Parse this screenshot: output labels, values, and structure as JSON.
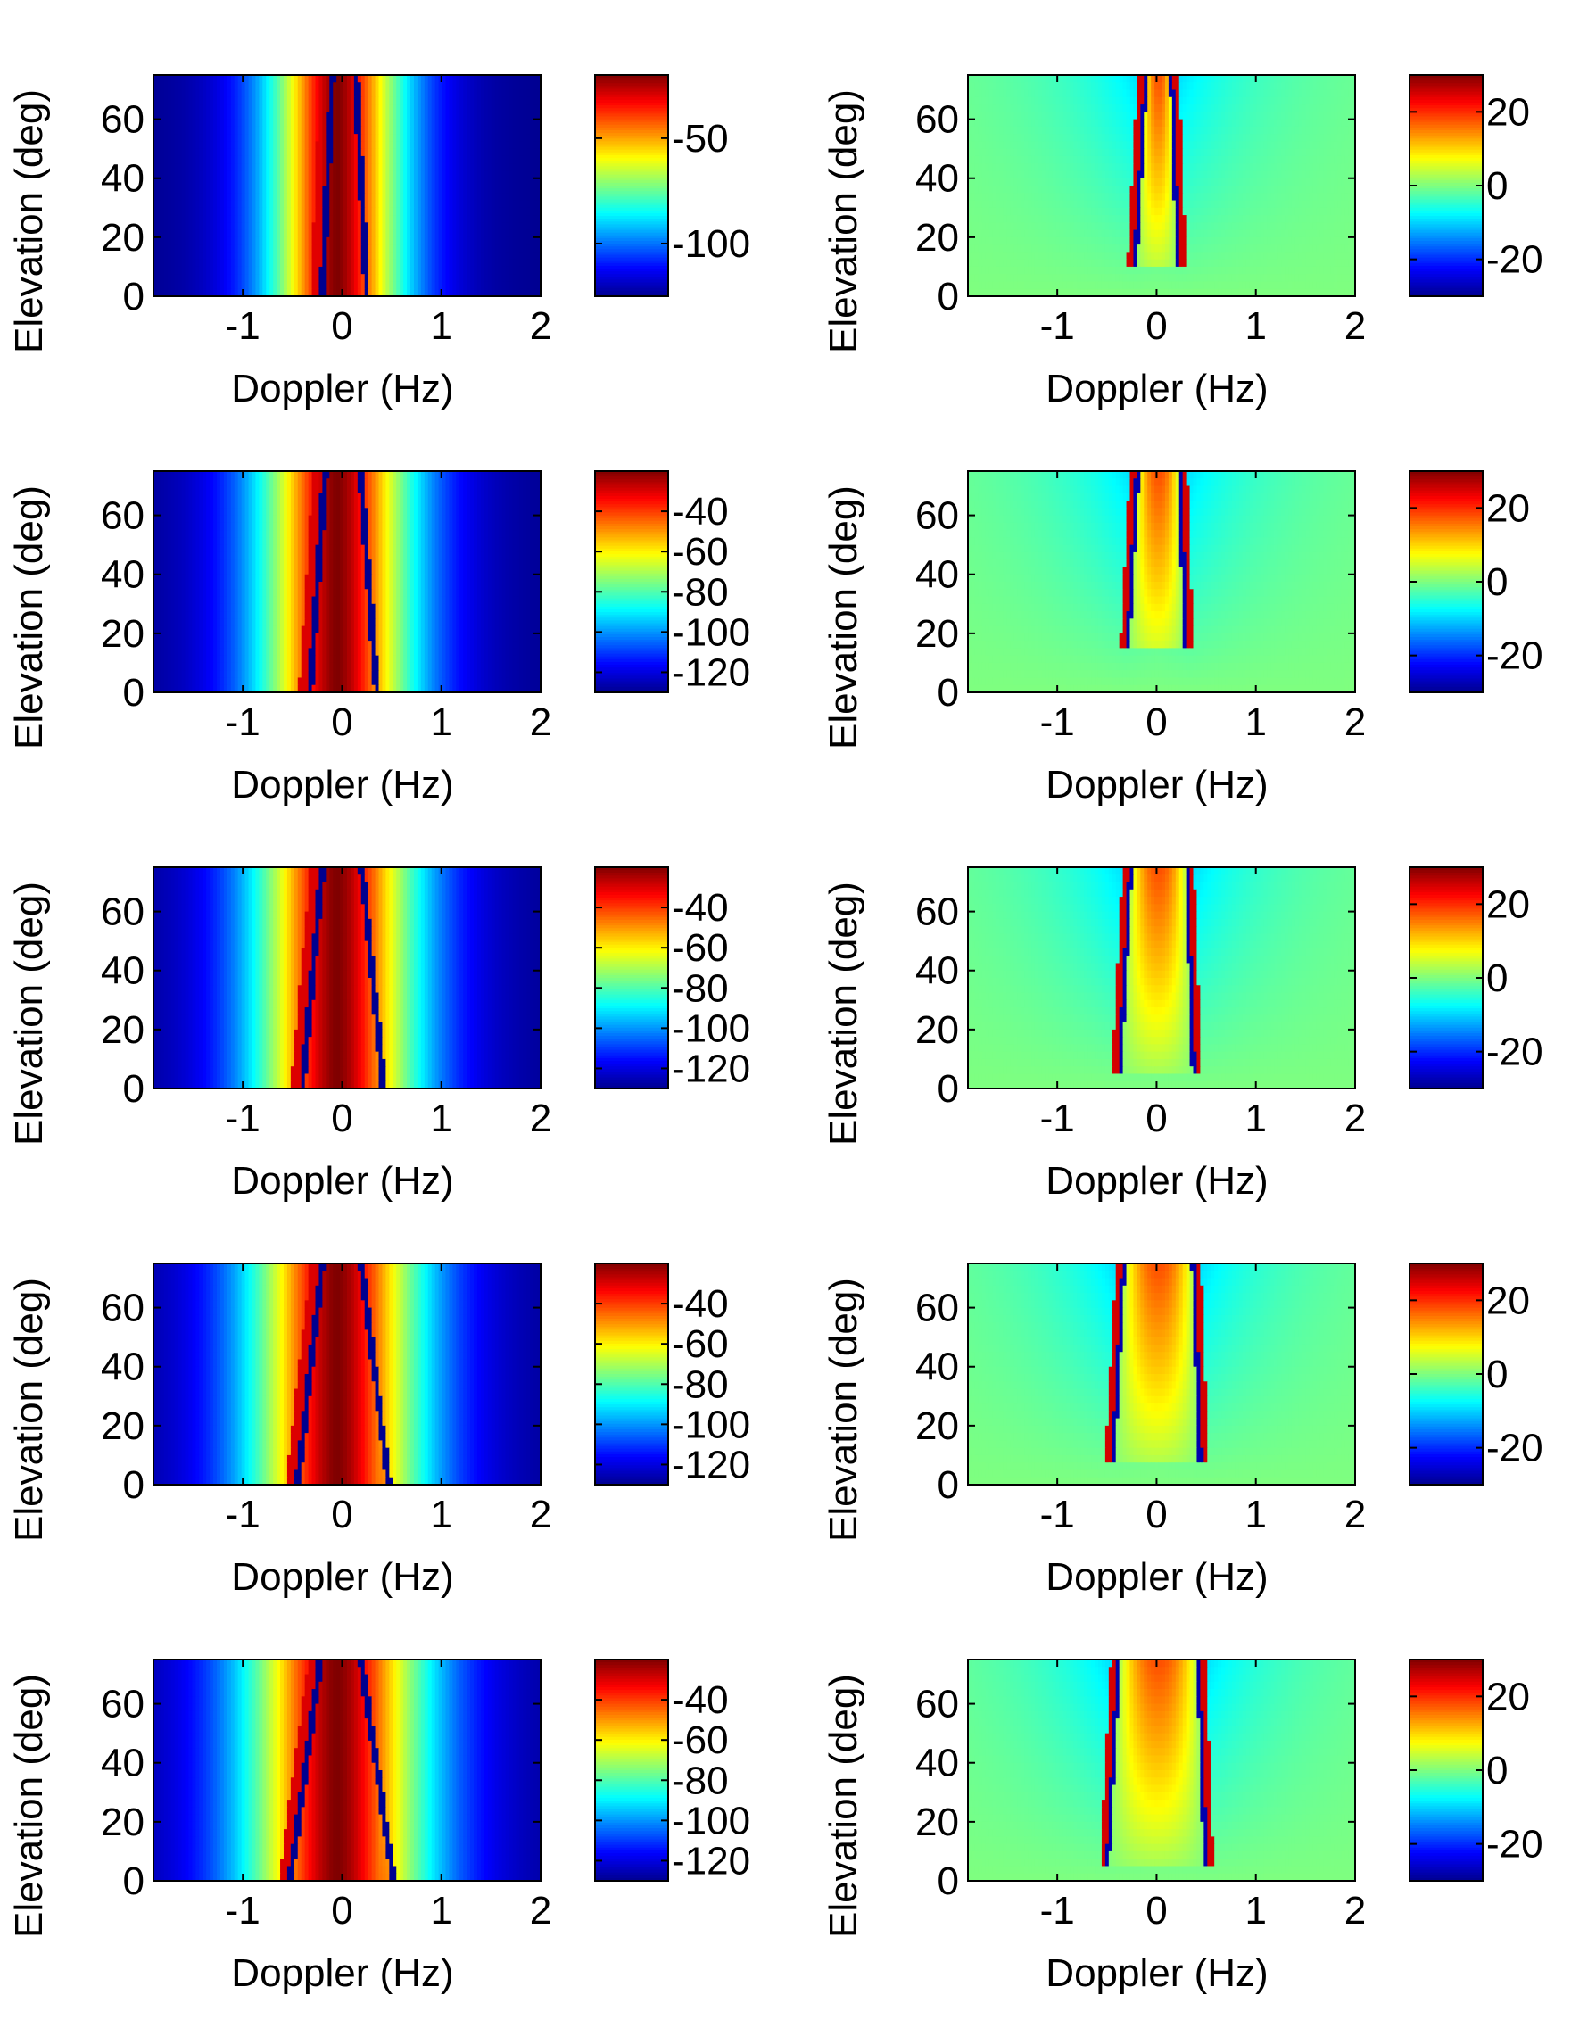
{
  "figure": {
    "rows": 5,
    "columns": 2,
    "colormap": [
      "#00008f",
      "#0000ff",
      "#007fff",
      "#00ffff",
      "#7fff7f",
      "#ffff00",
      "#ff7f00",
      "#ff0000",
      "#7f0000"
    ]
  },
  "chart_data": [
    {
      "type": "heatmap",
      "panel": "row1-left",
      "title": "",
      "xlabel": "Doppler (Hz)",
      "ylabel": "Elevation (deg)",
      "xlim": [
        -1.9,
        2
      ],
      "ylim": [
        0,
        75
      ],
      "xticks": [
        -1,
        0,
        1,
        2
      ],
      "xtick_labels": [
        "-1",
        "0",
        "1",
        "2"
      ],
      "yticks": [
        0,
        20,
        40,
        60
      ],
      "ytick_labels": [
        "0",
        "20",
        "40",
        "60"
      ],
      "colorbar": {
        "range": [
          -125,
          -20
        ],
        "ticks": [
          -50,
          -100
        ],
        "tick_labels": [
          "-50",
          "-100"
        ]
      },
      "features": {
        "kind": "spectrum",
        "ridge_doppler": 0.25,
        "ridge_width": 0.35,
        "notch_lines_at_elev0": [
          -0.2,
          0.25
        ],
        "notch_curvature": 0.1,
        "floor_db": -125,
        "peak_db": -20
      }
    },
    {
      "type": "heatmap",
      "panel": "row1-right",
      "title": "",
      "xlabel": "Doppler (Hz)",
      "ylabel": "Elevation (deg)",
      "xlim": [
        -1.9,
        2
      ],
      "ylim": [
        0,
        75
      ],
      "xticks": [
        -1,
        0,
        1,
        2
      ],
      "xtick_labels": [
        "-1",
        "0",
        "1",
        "2"
      ],
      "yticks": [
        0,
        20,
        40,
        60
      ],
      "ytick_labels": [
        "0",
        "20",
        "40",
        "60"
      ],
      "colorbar": {
        "range": [
          -30,
          30
        ],
        "ticks": [
          20,
          0,
          -20
        ],
        "tick_labels": [
          "20",
          "0",
          "-20"
        ]
      },
      "features": {
        "kind": "difference",
        "edge_doppler": 0.25,
        "start_elev": 10,
        "background": 0
      }
    },
    {
      "type": "heatmap",
      "panel": "row2-left",
      "title": "",
      "xlabel": "Doppler (Hz)",
      "ylabel": "Elevation (deg)",
      "xlim": [
        -1.9,
        2
      ],
      "ylim": [
        0,
        75
      ],
      "xticks": [
        -1,
        0,
        1,
        2
      ],
      "xtick_labels": [
        "-1",
        "0",
        "1",
        "2"
      ],
      "yticks": [
        0,
        20,
        40,
        60
      ],
      "ytick_labels": [
        "0",
        "20",
        "40",
        "60"
      ],
      "colorbar": {
        "range": [
          -130,
          -20
        ],
        "ticks": [
          -40,
          -60,
          -80,
          -100,
          -120
        ],
        "tick_labels": [
          "-40",
          "-60",
          "-80",
          "-100",
          "-120"
        ]
      },
      "features": {
        "kind": "spectrum",
        "ridge_doppler": 0.32,
        "ridge_width": 0.45,
        "notch_lines_at_elev0": [
          -0.32,
          0.35
        ],
        "notch_curvature": 0.15,
        "floor_db": -130,
        "peak_db": -20
      }
    },
    {
      "type": "heatmap",
      "panel": "row2-right",
      "title": "",
      "xlabel": "Doppler (Hz)",
      "ylabel": "Elevation (deg)",
      "xlim": [
        -1.9,
        2
      ],
      "ylim": [
        0,
        75
      ],
      "xticks": [
        -1,
        0,
        1,
        2
      ],
      "xtick_labels": [
        "-1",
        "0",
        "1",
        "2"
      ],
      "yticks": [
        0,
        20,
        40,
        60
      ],
      "ytick_labels": [
        "0",
        "20",
        "40",
        "60"
      ],
      "colorbar": {
        "range": [
          -30,
          30
        ],
        "ticks": [
          20,
          0,
          -20
        ],
        "tick_labels": [
          "20",
          "0",
          "-20"
        ]
      },
      "features": {
        "kind": "difference",
        "edge_doppler": 0.33,
        "start_elev": 15,
        "background": 0
      }
    },
    {
      "type": "heatmap",
      "panel": "row3-left",
      "title": "",
      "xlabel": "Doppler (Hz)",
      "ylabel": "Elevation (deg)",
      "xlim": [
        -1.9,
        2
      ],
      "ylim": [
        0,
        75
      ],
      "xticks": [
        -1,
        0,
        1,
        2
      ],
      "xtick_labels": [
        "-1",
        "0",
        "1",
        "2"
      ],
      "yticks": [
        0,
        20,
        40,
        60
      ],
      "ytick_labels": [
        "0",
        "20",
        "40",
        "60"
      ],
      "colorbar": {
        "range": [
          -130,
          -20
        ],
        "ticks": [
          -40,
          -60,
          -80,
          -100,
          -120
        ],
        "tick_labels": [
          "-40",
          "-60",
          "-80",
          "-100",
          "-120"
        ]
      },
      "features": {
        "kind": "spectrum",
        "ridge_doppler": 0.4,
        "ridge_width": 0.5,
        "notch_lines_at_elev0": [
          -0.4,
          0.42
        ],
        "notch_curvature": 0.2,
        "floor_db": -130,
        "peak_db": -20
      }
    },
    {
      "type": "heatmap",
      "panel": "row3-right",
      "title": "",
      "xlabel": "Doppler (Hz)",
      "ylabel": "Elevation (deg)",
      "xlim": [
        -1.9,
        2
      ],
      "ylim": [
        0,
        75
      ],
      "xticks": [
        -1,
        0,
        1,
        2
      ],
      "xtick_labels": [
        "-1",
        "0",
        "1",
        "2"
      ],
      "yticks": [
        0,
        20,
        40,
        60
      ],
      "ytick_labels": [
        "0",
        "20",
        "40",
        "60"
      ],
      "colorbar": {
        "range": [
          -30,
          30
        ],
        "ticks": [
          20,
          0,
          -20
        ],
        "tick_labels": [
          "20",
          "0",
          "-20"
        ]
      },
      "features": {
        "kind": "difference",
        "edge_doppler": 0.4,
        "start_elev": 5,
        "background": 0
      }
    },
    {
      "type": "heatmap",
      "panel": "row4-left",
      "title": "",
      "xlabel": "Doppler (Hz)",
      "ylabel": "Elevation (deg)",
      "xlim": [
        -1.9,
        2
      ],
      "ylim": [
        0,
        75
      ],
      "xticks": [
        -1,
        0,
        1,
        2
      ],
      "xtick_labels": [
        "-1",
        "0",
        "1",
        "2"
      ],
      "yticks": [
        0,
        20,
        40,
        60
      ],
      "ytick_labels": [
        "0",
        "20",
        "40",
        "60"
      ],
      "colorbar": {
        "range": [
          -130,
          -20
        ],
        "ticks": [
          -40,
          -60,
          -80,
          -100,
          -120
        ],
        "tick_labels": [
          "-40",
          "-60",
          "-80",
          "-100",
          "-120"
        ]
      },
      "features": {
        "kind": "spectrum",
        "ridge_doppler": 0.45,
        "ridge_width": 0.55,
        "notch_lines_at_elev0": [
          -0.45,
          0.47
        ],
        "notch_curvature": 0.25,
        "floor_db": -130,
        "peak_db": -20
      }
    },
    {
      "type": "heatmap",
      "panel": "row4-right",
      "title": "",
      "xlabel": "Doppler (Hz)",
      "ylabel": "Elevation (deg)",
      "xlim": [
        -1.9,
        2
      ],
      "ylim": [
        0,
        75
      ],
      "xticks": [
        -1,
        0,
        1,
        2
      ],
      "xtick_labels": [
        "-1",
        "0",
        "1",
        "2"
      ],
      "yticks": [
        0,
        20,
        40,
        60
      ],
      "ytick_labels": [
        "0",
        "20",
        "40",
        "60"
      ],
      "colorbar": {
        "range": [
          -30,
          30
        ],
        "ticks": [
          20,
          0,
          -20
        ],
        "tick_labels": [
          "20",
          "0",
          "-20"
        ]
      },
      "features": {
        "kind": "difference",
        "edge_doppler": 0.47,
        "start_elev": 8,
        "background": 0
      }
    },
    {
      "type": "heatmap",
      "panel": "row5-left",
      "title": "",
      "xlabel": "Doppler (Hz)",
      "ylabel": "Elevation (deg)",
      "xlim": [
        -1.9,
        2
      ],
      "ylim": [
        0,
        75
      ],
      "xticks": [
        -1,
        0,
        1,
        2
      ],
      "xtick_labels": [
        "-1",
        "0",
        "1",
        "2"
      ],
      "yticks": [
        0,
        20,
        40,
        60
      ],
      "ytick_labels": [
        "0",
        "20",
        "40",
        "60"
      ],
      "colorbar": {
        "range": [
          -130,
          -20
        ],
        "ticks": [
          -40,
          -60,
          -80,
          -100,
          -120
        ],
        "tick_labels": [
          "-40",
          "-60",
          "-80",
          "-100",
          "-120"
        ]
      },
      "features": {
        "kind": "spectrum",
        "ridge_doppler": 0.5,
        "ridge_width": 0.6,
        "notch_lines_at_elev0": [
          -0.52,
          0.52
        ],
        "notch_curvature": 0.3,
        "floor_db": -130,
        "peak_db": -20
      }
    },
    {
      "type": "heatmap",
      "panel": "row5-right",
      "title": "",
      "xlabel": "Doppler (Hz)",
      "ylabel": "Elevation (deg)",
      "xlim": [
        -1.9,
        2
      ],
      "ylim": [
        0,
        75
      ],
      "xticks": [
        -1,
        0,
        1,
        2
      ],
      "xtick_labels": [
        "-1",
        "0",
        "1",
        "2"
      ],
      "yticks": [
        0,
        20,
        40,
        60
      ],
      "ytick_labels": [
        "0",
        "20",
        "40",
        "60"
      ],
      "colorbar": {
        "range": [
          -30,
          30
        ],
        "ticks": [
          20,
          0,
          -20
        ],
        "tick_labels": [
          "20",
          "0",
          "-20"
        ]
      },
      "features": {
        "kind": "difference",
        "edge_doppler": 0.52,
        "start_elev": 5,
        "background": 0
      }
    }
  ]
}
